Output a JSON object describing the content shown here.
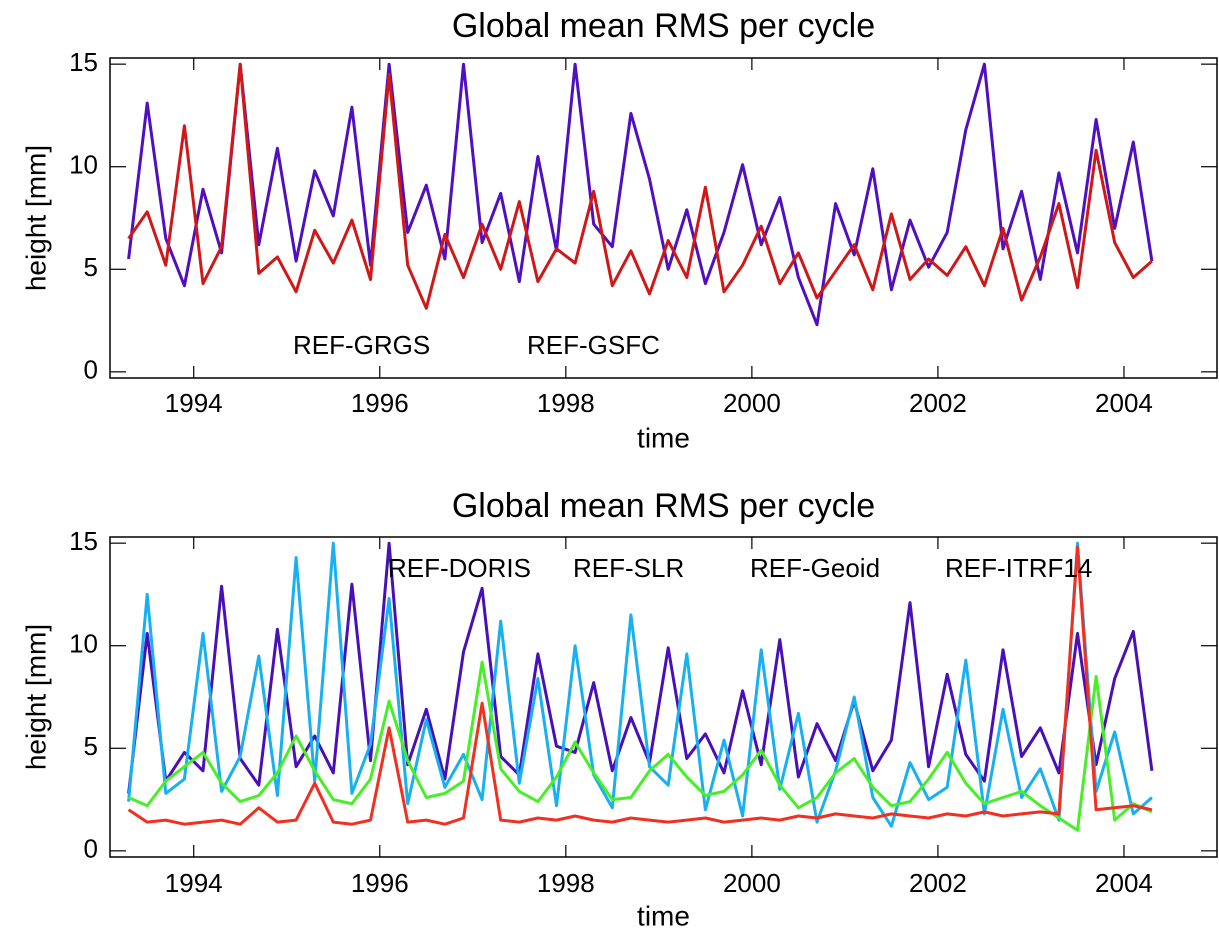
{
  "chart_data": [
    {
      "type": "line",
      "title": "Global mean RMS per cycle",
      "x_label": "time",
      "y_label": "height [mm]",
      "xlim": [
        1993.1,
        2005.0
      ],
      "xticks": [
        1994,
        1996,
        1998,
        2000,
        2002,
        2004
      ],
      "ylim": [
        -0.3,
        15.3
      ],
      "yticks": [
        0,
        5,
        10,
        15
      ],
      "x": [
        1993.3,
        1993.5,
        1993.7,
        1993.9,
        1994.1,
        1994.3,
        1994.5,
        1994.7,
        1994.9,
        1995.1,
        1995.3,
        1995.5,
        1995.7,
        1995.9,
        1996.1,
        1996.3,
        1996.5,
        1996.7,
        1996.9,
        1997.1,
        1997.3,
        1997.5,
        1997.7,
        1997.9,
        1998.1,
        1998.3,
        1998.5,
        1998.7,
        1998.9,
        1999.1,
        1999.3,
        1999.5,
        1999.7,
        1999.9,
        2000.1,
        2000.3,
        2000.5,
        2000.7,
        2000.9,
        2001.1,
        2001.3,
        2001.5,
        2001.7,
        2001.9,
        2002.1,
        2002.3,
        2002.5,
        2002.7,
        2002.9,
        2003.1,
        2003.3,
        2003.5,
        2003.7,
        2003.9,
        2004.1,
        2004.3
      ],
      "series": [
        {
          "name": "REF-GRGS",
          "color": "#5010c0",
          "values": [
            5.5,
            13.1,
            6.5,
            4.2,
            8.9,
            5.8,
            15,
            6.2,
            10.9,
            5.4,
            9.8,
            7.6,
            12.9,
            5.2,
            15,
            6.8,
            9.1,
            5.5,
            15,
            6.3,
            8.7,
            4.4,
            10.5,
            5.9,
            15,
            7.2,
            6.1,
            12.6,
            9.4,
            5.0,
            7.9,
            4.3,
            6.8,
            10.1,
            6.2,
            8.5,
            4.6,
            2.3,
            8.2,
            5.7,
            9.9,
            4.0,
            7.4,
            5.1,
            6.8,
            11.8,
            15,
            6.0,
            8.8,
            4.5,
            9.7,
            5.8,
            12.3,
            7.0,
            11.2,
            5.4
          ]
        },
        {
          "name": "REF-GSFC",
          "color": "#d01818",
          "values": [
            6.5,
            7.8,
            5.2,
            12.0,
            4.3,
            6.1,
            15,
            4.8,
            5.6,
            3.9,
            6.9,
            5.3,
            7.4,
            4.5,
            14.5,
            5.2,
            3.1,
            6.7,
            4.6,
            7.2,
            5.0,
            8.3,
            4.4,
            6.0,
            5.3,
            8.8,
            4.2,
            5.9,
            3.8,
            6.4,
            4.6,
            9.0,
            3.9,
            5.2,
            7.1,
            4.3,
            5.8,
            3.6,
            4.9,
            6.2,
            4.0,
            7.7,
            4.5,
            5.5,
            4.7,
            6.1,
            4.2,
            7.0,
            3.5,
            5.6,
            8.2,
            4.1,
            10.8,
            6.3,
            4.6,
            5.4
          ]
        }
      ]
    },
    {
      "type": "line",
      "title": "Global mean RMS per cycle",
      "x_label": "time",
      "y_label": "height [mm]",
      "xlim": [
        1993.1,
        2005.0
      ],
      "xticks": [
        1994,
        1996,
        1998,
        2000,
        2002,
        2004
      ],
      "ylim": [
        -0.3,
        15.3
      ],
      "yticks": [
        0,
        5,
        10,
        15
      ],
      "x": [
        1993.3,
        1993.5,
        1993.7,
        1993.9,
        1994.1,
        1994.3,
        1994.5,
        1994.7,
        1994.9,
        1995.1,
        1995.3,
        1995.5,
        1995.7,
        1995.9,
        1996.1,
        1996.3,
        1996.5,
        1996.7,
        1996.9,
        1997.1,
        1997.3,
        1997.5,
        1997.7,
        1997.9,
        1998.1,
        1998.3,
        1998.5,
        1998.7,
        1998.9,
        1999.1,
        1999.3,
        1999.5,
        1999.7,
        1999.9,
        2000.1,
        2000.3,
        2000.5,
        2000.7,
        2000.9,
        2001.1,
        2001.3,
        2001.5,
        2001.7,
        2001.9,
        2002.1,
        2002.3,
        2002.5,
        2002.7,
        2002.9,
        2003.1,
        2003.3,
        2003.5,
        2003.7,
        2003.9,
        2004.1,
        2004.3
      ],
      "series": [
        {
          "name": "REF-DORIS",
          "color": "#4a10b8",
          "values": [
            2.8,
            10.6,
            3.4,
            4.8,
            3.9,
            12.9,
            4.5,
            3.2,
            10.8,
            4.1,
            5.6,
            3.8,
            13.0,
            4.4,
            15,
            4.2,
            6.9,
            3.5,
            9.7,
            12.8,
            4.6,
            3.7,
            9.6,
            5.1,
            4.8,
            8.2,
            3.9,
            6.5,
            4.3,
            9.9,
            4.5,
            5.7,
            3.8,
            7.8,
            4.2,
            10.3,
            3.6,
            6.2,
            4.4,
            7.3,
            3.9,
            5.4,
            12.1,
            4.1,
            8.6,
            4.7,
            3.4,
            9.8,
            4.6,
            6.0,
            3.8,
            10.6,
            4.2,
            8.4,
            10.7,
            3.9
          ]
        },
        {
          "name": "REF-SLR",
          "color": "#18b0f0",
          "values": [
            2.4,
            12.5,
            2.8,
            3.5,
            10.6,
            2.9,
            4.6,
            9.5,
            2.7,
            14.3,
            3.4,
            15,
            2.8,
            5.2,
            12.3,
            2.3,
            6.4,
            3.1,
            4.7,
            2.5,
            11.2,
            3.3,
            8.4,
            2.2,
            10.0,
            3.7,
            2.1,
            11.5,
            4.1,
            3.2,
            9.6,
            2.0,
            5.4,
            1.7,
            9.8,
            3.0,
            6.7,
            1.4,
            3.9,
            7.5,
            2.6,
            1.2,
            4.3,
            2.5,
            3.1,
            9.3,
            1.8,
            6.9,
            2.6,
            4.0,
            1.5,
            15,
            2.9,
            5.8,
            1.8,
            2.6
          ]
        },
        {
          "name": "REF-Geoid",
          "color": "#48ee28",
          "values": [
            2.6,
            2.2,
            3.4,
            4.1,
            4.8,
            3.3,
            2.4,
            2.7,
            3.8,
            5.6,
            3.9,
            2.5,
            2.3,
            3.5,
            7.3,
            4.4,
            2.6,
            2.8,
            3.4,
            9.2,
            4.0,
            2.9,
            2.4,
            3.6,
            5.3,
            3.8,
            2.5,
            2.6,
            3.9,
            4.7,
            3.6,
            2.7,
            2.9,
            3.7,
            4.9,
            3.2,
            2.1,
            2.6,
            3.8,
            4.5,
            3.1,
            2.2,
            2.4,
            3.5,
            4.8,
            3.3,
            2.3,
            2.6,
            2.9,
            2.2,
            1.6,
            1.0,
            8.5,
            1.5,
            2.3,
            1.9
          ]
        },
        {
          "name": "REF-ITRF14",
          "color": "#f03020",
          "values": [
            2.0,
            1.4,
            1.5,
            1.3,
            1.4,
            1.5,
            1.3,
            2.1,
            1.4,
            1.5,
            3.3,
            1.4,
            1.3,
            1.5,
            6.0,
            1.4,
            1.5,
            1.3,
            1.6,
            7.2,
            1.5,
            1.4,
            1.6,
            1.5,
            1.7,
            1.5,
            1.4,
            1.6,
            1.5,
            1.4,
            1.5,
            1.6,
            1.4,
            1.5,
            1.6,
            1.5,
            1.7,
            1.6,
            1.8,
            1.7,
            1.6,
            1.8,
            1.7,
            1.6,
            1.8,
            1.7,
            1.9,
            1.7,
            1.8,
            1.9,
            1.8,
            14.8,
            2.0,
            2.1,
            2.2,
            2.0
          ]
        }
      ]
    }
  ]
}
